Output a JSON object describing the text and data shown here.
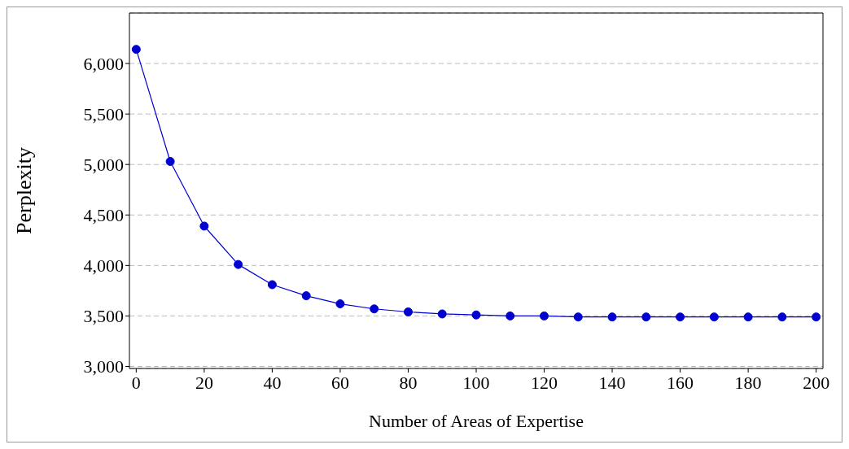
{
  "chart_data": {
    "type": "line",
    "xlabel": "Number of Areas of Expertise",
    "ylabel": "Perplexity",
    "x": [
      0,
      10,
      20,
      30,
      40,
      50,
      60,
      70,
      80,
      90,
      100,
      110,
      120,
      130,
      140,
      150,
      160,
      170,
      180,
      190,
      200
    ],
    "series": [
      {
        "color": "#0000d0",
        "values": [
          6140,
          5030,
          4390,
          4010,
          3810,
          3700,
          3620,
          3570,
          3540,
          3520,
          3510,
          3500,
          3500,
          3490,
          3490,
          3490,
          3490,
          3490,
          3490,
          3490,
          3490
        ]
      }
    ],
    "xlim": [
      -2,
      202
    ],
    "xticks": [
      0,
      20,
      40,
      60,
      80,
      100,
      120,
      140,
      160,
      180,
      200
    ],
    "ylim": [
      2980,
      6500
    ],
    "yticks": [
      {
        "value": 3000,
        "label": "3,000"
      },
      {
        "value": 3500,
        "label": "3,500"
      },
      {
        "value": 4000,
        "label": "4,000"
      },
      {
        "value": 4500,
        "label": "4,500"
      },
      {
        "value": 5000,
        "label": "5,000"
      },
      {
        "value": 5500,
        "label": "5,500"
      },
      {
        "value": 6000,
        "label": "6,000"
      }
    ],
    "grid": "y",
    "marker": "circle",
    "line_style": "solid",
    "legend": false
  }
}
